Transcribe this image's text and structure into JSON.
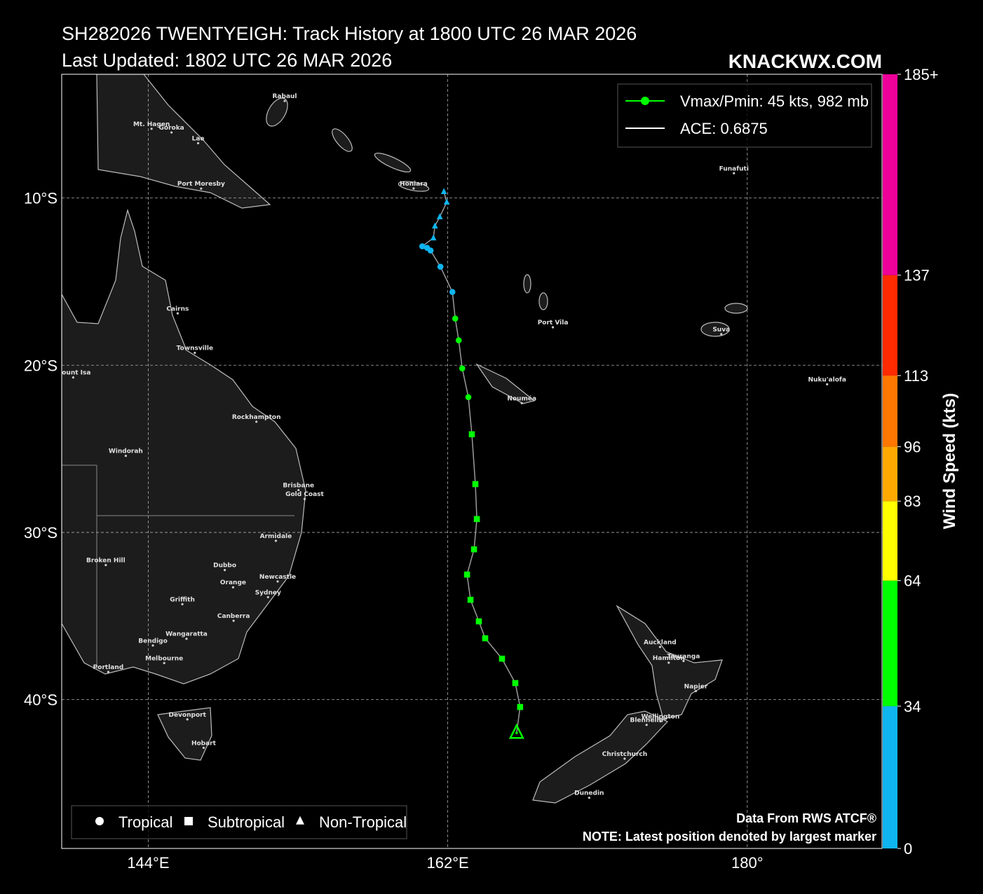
{
  "header": {
    "title": "SH282026 TWENTYEIGH: Track History at 1800 UTC 26 MAR 2026",
    "subtitle": "Last Updated: 1802 UTC 26 MAR 2026",
    "brand": "KNACKWX.COM"
  },
  "chart_data": {
    "type": "map",
    "xlim": [
      138.8,
      188.1
    ],
    "ylim": [
      -48.9,
      -2.6
    ],
    "xticks": [
      {
        "value": 144,
        "label": "144°E"
      },
      {
        "value": 162,
        "label": "162°E"
      },
      {
        "value": 180,
        "label": "180°"
      }
    ],
    "yticks": [
      {
        "value": -10,
        "label": "10°S"
      },
      {
        "value": -20,
        "label": "20°S"
      },
      {
        "value": -30,
        "label": "30°S"
      },
      {
        "value": -40,
        "label": "40°S"
      }
    ],
    "grid": true,
    "track_color": "#9a9a9a",
    "track": {
      "lat": [
        -9.62,
        -10.25,
        -11.13,
        -11.68,
        -12.39,
        -12.89,
        -12.98,
        -13.14,
        -14.11,
        -15.62,
        -17.21,
        -18.51,
        -20.19,
        -21.91,
        -24.13,
        -27.11,
        -29.2,
        -31.01,
        -32.52,
        -34.03,
        -35.32,
        -36.33,
        -37.55,
        -39.01,
        -40.44,
        -41.99
      ],
      "lon": [
        161.77,
        161.94,
        161.52,
        161.23,
        161.14,
        160.47,
        160.76,
        160.97,
        161.56,
        162.28,
        162.45,
        162.66,
        162.87,
        163.24,
        163.45,
        163.66,
        163.75,
        163.58,
        163.16,
        163.37,
        163.87,
        164.25,
        165.26,
        166.06,
        166.35,
        166.14
      ],
      "wind": [
        25,
        25,
        25,
        25,
        30,
        30,
        30,
        30,
        30,
        30,
        35,
        35,
        40,
        40,
        45,
        45,
        45,
        45,
        45,
        40,
        40,
        40,
        40,
        45,
        45,
        45
      ],
      "marker": [
        "Non-Tropical",
        "Non-Tropical",
        "Non-Tropical",
        "Non-Tropical",
        "Non-Tropical",
        "Tropical",
        "Tropical",
        "Tropical",
        "Tropical",
        "Tropical",
        "Tropical",
        "Tropical",
        "Tropical",
        "Tropical",
        "Subtropical",
        "Subtropical",
        "Subtropical",
        "Subtropical",
        "Subtropical",
        "Subtropical",
        "Subtropical",
        "Subtropical",
        "Subtropical",
        "Subtropical",
        "Subtropical",
        "Non-Tropical"
      ]
    },
    "legend": {
      "entries": [
        "Vmax/Pmin: 45 kts, 982 mb",
        "ACE: 0.6875"
      ],
      "colors": [
        "#00ff00",
        "#ffffff"
      ],
      "corner": "upper right"
    },
    "marker_legend": {
      "labels": [
        "Tropical",
        "Subtropical",
        "Non-Tropical"
      ],
      "corner": "lower left"
    },
    "colorbar": {
      "label": "Wind Speed (kts)",
      "lim": [
        0,
        185
      ],
      "bins": [
        0,
        34,
        64,
        83,
        96,
        113,
        137,
        185
      ],
      "colors": [
        "#0fb5ee",
        "#00ff00",
        "#ffff00",
        "#ffaa00",
        "#ff7700",
        "#ff2a00",
        "#ee0099"
      ],
      "ticks": [
        0,
        34,
        64,
        83,
        96,
        113,
        137,
        {
          "value": 185,
          "label": "185+"
        }
      ]
    },
    "cities": {
      "names": [
        "Rabaul",
        "Mt. Hagen",
        "Goroka",
        "Lae",
        "Port Moresby",
        "Honiara",
        "Funafuti",
        "Cairns",
        "Townsville",
        "Mount Isa",
        "Rockhampton",
        "Windorah",
        "Brisbane",
        "Gold Coast",
        "Armidale",
        "Broken Hill",
        "Dubbo",
        "Orange",
        "Newcastle",
        "Sydney",
        "Griffith",
        "Canberra",
        "Wangaratta",
        "Bendigo",
        "Melbourne",
        "Portland",
        "Devonport",
        "Hobart",
        "Port Vila",
        "Nouméa",
        "Suva",
        "Nuku'alofa",
        "Auckland",
        "Tauranga",
        "Hamilton",
        "Napier",
        "Wellington",
        "Blenheim",
        "Christchurch",
        "Dunedin"
      ],
      "lat": [
        -4.2,
        -5.86,
        -6.08,
        -6.72,
        -9.44,
        -9.43,
        -8.52,
        -16.9,
        -19.26,
        -20.73,
        -23.38,
        -25.42,
        -27.47,
        -28.0,
        -30.5,
        -31.95,
        -32.25,
        -33.28,
        -32.93,
        -33.87,
        -34.29,
        -35.28,
        -36.36,
        -36.76,
        -37.81,
        -38.34,
        -41.18,
        -42.88,
        -17.73,
        -22.27,
        -18.14,
        -21.14,
        -36.85,
        -37.69,
        -37.79,
        -39.49,
        -41.29,
        -41.51,
        -43.53,
        -45.87
      ],
      "lon": [
        152.2,
        144.2,
        145.4,
        147.0,
        147.18,
        159.95,
        179.2,
        145.77,
        146.8,
        139.49,
        150.5,
        142.65,
        153.03,
        153.4,
        151.67,
        141.45,
        148.6,
        149.1,
        151.78,
        151.2,
        146.05,
        149.13,
        146.3,
        144.28,
        144.96,
        141.6,
        146.35,
        147.33,
        168.32,
        166.45,
        178.44,
        184.8,
        174.76,
        176.17,
        175.28,
        176.91,
        174.78,
        173.95,
        172.63,
        170.5
      ]
    },
    "notes": [
      "Data From RWS ATCF®",
      "NOTE: Latest position denoted by largest marker"
    ]
  }
}
